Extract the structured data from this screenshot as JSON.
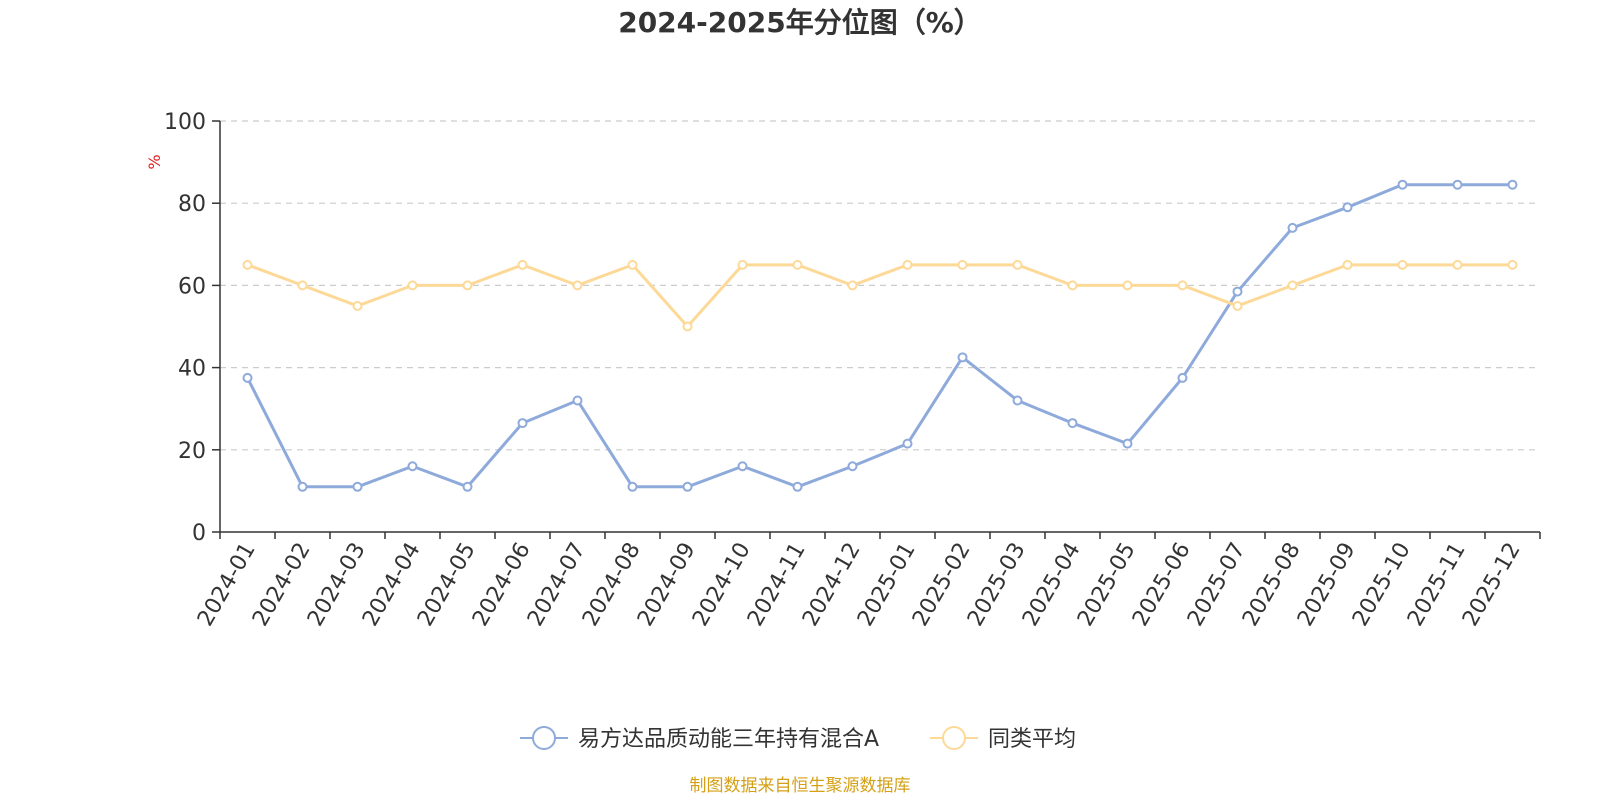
{
  "chart_data": {
    "type": "line",
    "title": "2024-2025年分位图（%）",
    "ylabel": "%",
    "ylim": [
      0,
      100
    ],
    "yticks": [
      0,
      20,
      40,
      60,
      80,
      100
    ],
    "grid": true,
    "legend_position": "bottom-center",
    "x": [
      "2024-01",
      "2024-02",
      "2024-03",
      "2024-04",
      "2024-05",
      "2024-06",
      "2024-07",
      "2024-08",
      "2024-09",
      "2024-10",
      "2024-11",
      "2024-12",
      "2025-01",
      "2025-02",
      "2025-03",
      "2025-04",
      "2025-05",
      "2025-06",
      "2025-07",
      "2025-08",
      "2025-09",
      "2025-10",
      "2025-11",
      "2025-12"
    ],
    "series": [
      {
        "name": "易方达品质动能三年持有混合A",
        "color": "#8eaadb",
        "values": [
          37.5,
          11,
          11,
          16,
          11,
          26.5,
          32,
          11,
          11,
          16,
          11,
          16,
          21.5,
          42.5,
          32,
          26.5,
          21.5,
          37.5,
          58.5,
          74,
          79,
          84.5,
          84.5,
          84.5
        ]
      },
      {
        "name": "同类平均",
        "color": "#fdd998",
        "values": [
          65,
          60,
          55,
          60,
          60,
          65,
          60,
          65,
          50,
          65,
          65,
          60,
          65,
          65,
          65,
          60,
          60,
          60,
          55,
          60,
          65,
          65,
          65,
          65
        ]
      }
    ]
  },
  "source": "制图数据来自恒生聚源数据库"
}
